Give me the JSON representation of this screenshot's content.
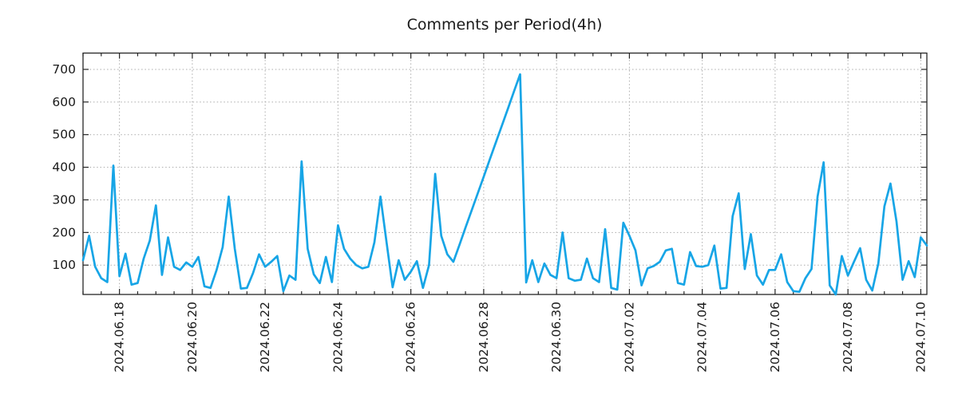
{
  "chart_data": {
    "type": "line",
    "title": "Comments per Period(4h)",
    "xlabel": "",
    "ylabel": "",
    "x_interval": "4h per point",
    "x_tick_labels": [
      "2024.06.18",
      "2024.06.20",
      "2024.06.22",
      "2024.06.24",
      "2024.06.26",
      "2024.06.28",
      "2024.06.30",
      "2024.07.02",
      "2024.07.04",
      "2024.07.06",
      "2024.07.08",
      "2024.07.10"
    ],
    "x_tick_indices": [
      6,
      18,
      30,
      42,
      54,
      66,
      78,
      90,
      102,
      114,
      126,
      138
    ],
    "x_minor_tick_every": 3,
    "y_ticks": [
      100,
      200,
      300,
      400,
      500,
      600,
      700
    ],
    "ylim": [
      10,
      750
    ],
    "grid": true,
    "legend": "none",
    "line_color": "#17a5e6",
    "grid_color": "#ababab",
    "axis_color": "#262626",
    "values": [
      115,
      190,
      95,
      60,
      48,
      405,
      66,
      135,
      40,
      45,
      120,
      175,
      283,
      70,
      185,
      95,
      85,
      108,
      95,
      125,
      35,
      30,
      85,
      155,
      310,
      150,
      28,
      30,
      75,
      133,
      95,
      110,
      128,
      20,
      68,
      55,
      418,
      150,
      72,
      45,
      125,
      48,
      222,
      150,
      120,
      100,
      90,
      95,
      170,
      310,
      170,
      32,
      115,
      55,
      80,
      112,
      30,
      100,
      380,
      190,
      133,
      110,
      162,
      215,
      267,
      319,
      371,
      424,
      476,
      528,
      580,
      633,
      685,
      47,
      115,
      48,
      105,
      70,
      60,
      200,
      60,
      52,
      55,
      120,
      60,
      48,
      210,
      30,
      25,
      230,
      190,
      145,
      38,
      90,
      97,
      110,
      145,
      150,
      45,
      40,
      140,
      97,
      95,
      100,
      160,
      28,
      30,
      250,
      320,
      88,
      195,
      68,
      40,
      85,
      85,
      133,
      48,
      20,
      18,
      60,
      88,
      310,
      415,
      38,
      10,
      128,
      68,
      110,
      152,
      55,
      22,
      105,
      280,
      350,
      233,
      55,
      112,
      63,
      185,
      160
    ]
  }
}
